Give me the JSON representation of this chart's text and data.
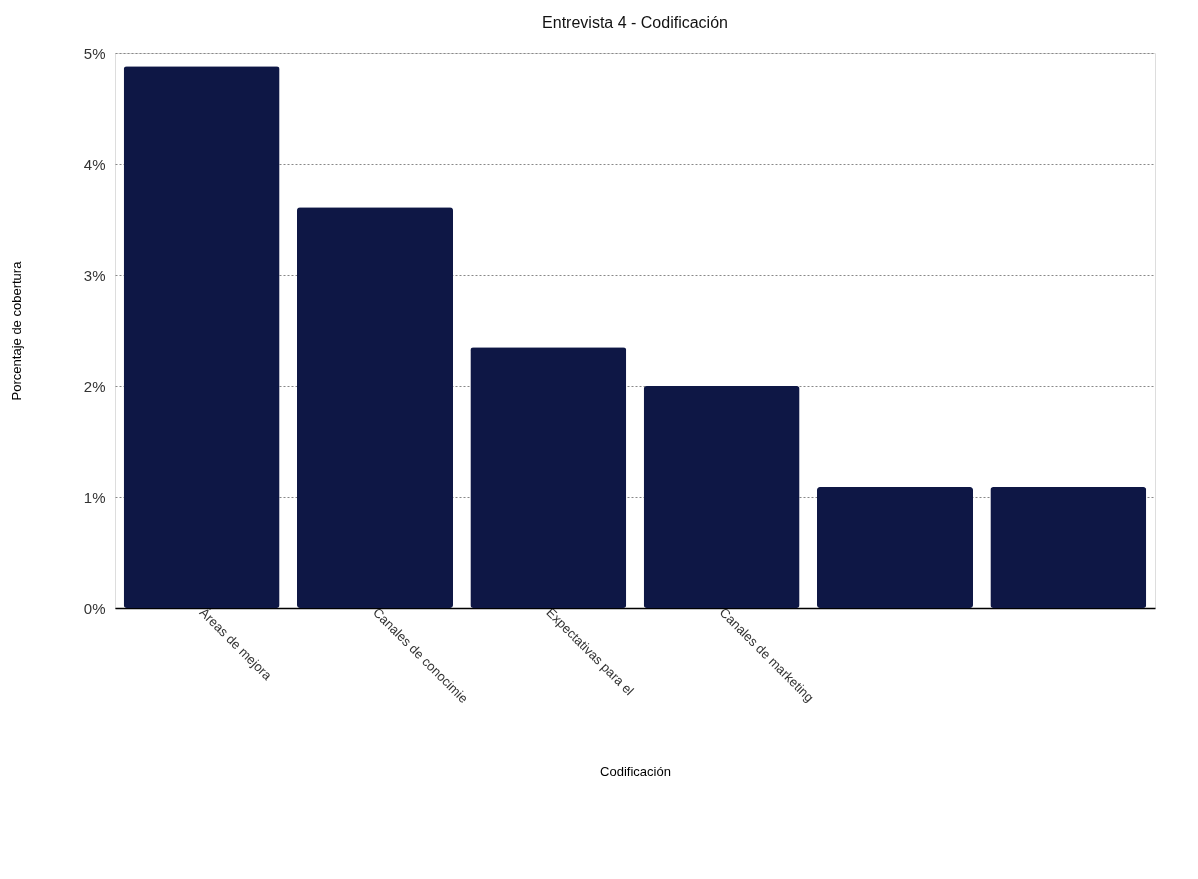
{
  "chart_data": {
    "type": "bar",
    "title": "Entrevista 4 - Codificación",
    "xlabel": "Codificación",
    "ylabel": "Porcentaje de cobertura",
    "categories": [
      "Áreas de mejora",
      "Canales de conocimie",
      "Expectativas para el",
      "Canales de marketing",
      null,
      null
    ],
    "values": [
      4.88,
      3.61,
      2.35,
      2.0,
      1.09,
      1.09
    ],
    "color": "#0e1745",
    "ylim": [
      0,
      5
    ],
    "yticks": [
      {
        "value": 0,
        "label": "0%"
      },
      {
        "value": 1,
        "label": "1%"
      },
      {
        "value": 2,
        "label": "2%"
      },
      {
        "value": 3,
        "label": "3%"
      },
      {
        "value": 4,
        "label": "4%"
      },
      {
        "value": 5,
        "label": "5%"
      }
    ],
    "grid": "y"
  }
}
